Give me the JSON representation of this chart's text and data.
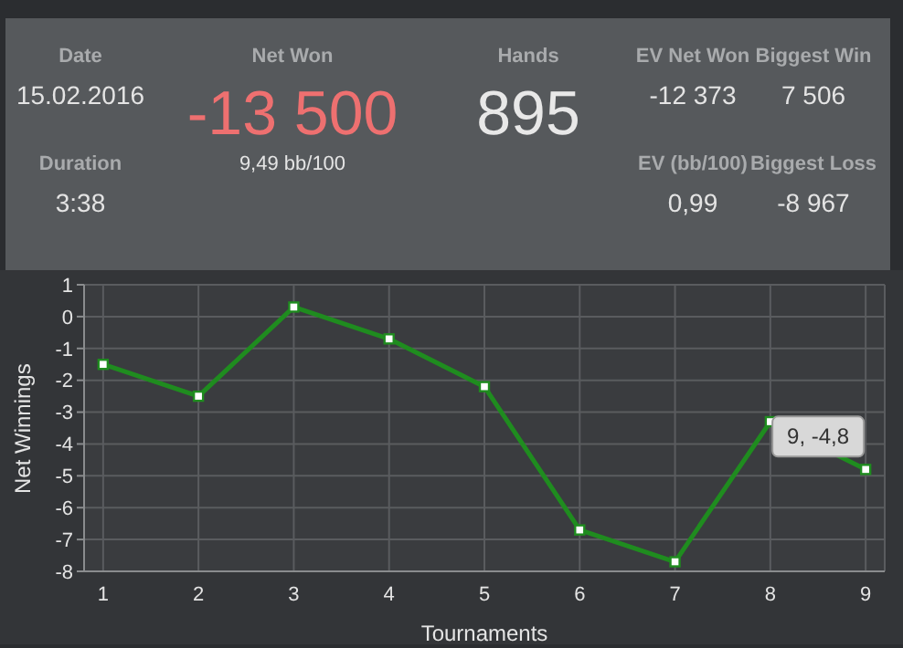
{
  "chart_data": [
    {
      "type": "other",
      "annotations": [
        "Date",
        "15.02.2016",
        "Duration",
        "3:38",
        "Net Won",
        "-13 500",
        "9,49 bb/100",
        "Hands",
        "895",
        "EV Net Won",
        "-12 373",
        "Biggest Win",
        "7 506",
        "EV (bb/100)",
        "0,99",
        "Biggest Loss",
        "-8 967"
      ]
    },
    {
      "type": "line",
      "xlabel": "Tournaments",
      "ylabel": "Net Winnings",
      "x": [
        1,
        2,
        3,
        4,
        5,
        6,
        7,
        8,
        9
      ],
      "values": [
        -1.5,
        -2.5,
        0.3,
        -0.7,
        -2.2,
        -6.7,
        -7.7,
        -3.3,
        -4.8
      ],
      "color": "#1f8c1f",
      "xlim": [
        0.8,
        9.2
      ],
      "xticks": [
        1,
        2,
        3,
        4,
        5,
        6,
        7,
        8,
        9
      ],
      "ylim": [
        -8,
        1
      ],
      "yticks": [
        -8,
        -7,
        -6,
        -5,
        -4,
        -3,
        -2,
        -1,
        0,
        1
      ],
      "grid": true,
      "marker": "square",
      "line_style": "solid",
      "annotations": [
        {
          "text": "9, -4,8",
          "x": 9,
          "y": -4.8
        }
      ]
    }
  ]
}
